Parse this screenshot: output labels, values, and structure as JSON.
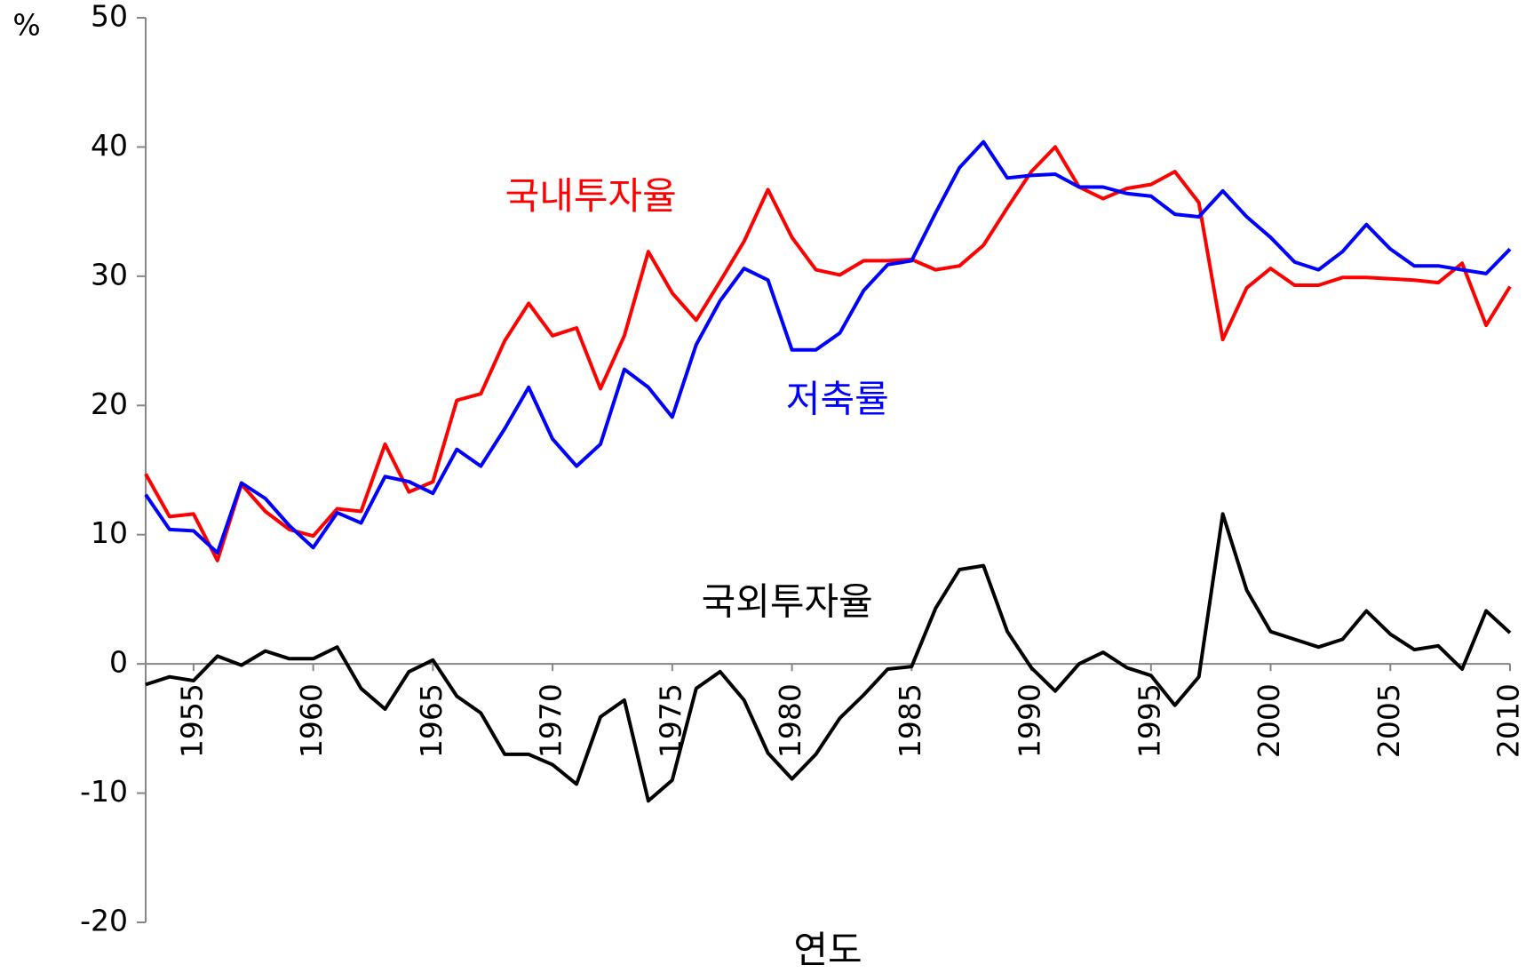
{
  "chart_data": {
    "type": "line",
    "y_unit": "%",
    "x_label": "연도",
    "x": [
      1953,
      1954,
      1955,
      1956,
      1957,
      1958,
      1959,
      1960,
      1961,
      1962,
      1963,
      1964,
      1965,
      1966,
      1967,
      1968,
      1969,
      1970,
      1971,
      1972,
      1973,
      1974,
      1975,
      1976,
      1977,
      1978,
      1979,
      1980,
      1981,
      1982,
      1983,
      1984,
      1985,
      1986,
      1987,
      1988,
      1989,
      1990,
      1991,
      1992,
      1993,
      1994,
      1995,
      1996,
      1997,
      1998,
      1999,
      2000,
      2001,
      2002,
      2003,
      2004,
      2005,
      2006,
      2007,
      2008,
      2009,
      2010
    ],
    "series": [
      {
        "name": "국내투자율",
        "color": "#ff0000",
        "values": [
          14.7,
          11.4,
          11.6,
          8.0,
          13.9,
          11.8,
          10.4,
          9.9,
          12.0,
          11.8,
          17.0,
          13.3,
          14.1,
          20.4,
          20.9,
          25.0,
          27.9,
          25.4,
          26.0,
          21.3,
          25.4,
          31.9,
          28.7,
          26.6,
          29.6,
          32.7,
          36.7,
          33.0,
          30.5,
          30.1,
          31.2,
          31.2,
          31.3,
          30.5,
          30.8,
          32.4,
          35.3,
          38.1,
          40.0,
          36.9,
          36.0,
          36.8,
          37.1,
          38.1,
          35.7,
          25.1,
          29.1,
          30.6,
          29.3,
          29.3,
          29.9,
          29.9,
          29.8,
          29.7,
          29.5,
          31.0,
          26.2,
          29.2
        ]
      },
      {
        "name": "저축률",
        "color": "#0000ff",
        "values": [
          13.1,
          10.4,
          10.3,
          8.6,
          14.0,
          12.8,
          10.7,
          9.0,
          11.7,
          10.9,
          14.5,
          14.1,
          13.2,
          16.6,
          15.3,
          18.2,
          21.4,
          17.4,
          15.3,
          17.0,
          22.8,
          21.4,
          19.1,
          24.7,
          28.1,
          30.6,
          29.7,
          24.3,
          24.3,
          25.6,
          28.9,
          30.9,
          31.2,
          34.9,
          38.4,
          40.4,
          37.6,
          37.8,
          37.9,
          36.9,
          36.9,
          36.4,
          36.2,
          34.8,
          34.6,
          36.6,
          34.6,
          33.0,
          31.1,
          30.5,
          31.9,
          34.0,
          32.1,
          30.8,
          30.8,
          30.5,
          30.2,
          32.1
        ]
      },
      {
        "name": "국외투자율",
        "color": "#000000",
        "values": [
          -1.6,
          -1.0,
          -1.3,
          0.6,
          -0.1,
          1.0,
          0.4,
          0.4,
          1.3,
          -1.9,
          -3.5,
          -0.6,
          0.3,
          -2.5,
          -3.8,
          -7.0,
          -7.0,
          -7.8,
          -9.3,
          -4.1,
          -2.8,
          -10.6,
          -9.0,
          -1.9,
          -0.6,
          -2.8,
          -6.9,
          -8.9,
          -7.0,
          -4.2,
          -2.4,
          -0.4,
          -0.2,
          4.3,
          7.3,
          7.6,
          2.5,
          -0.3,
          -2.1,
          0.0,
          0.9,
          -0.3,
          -0.9,
          -3.2,
          -1.0,
          11.6,
          5.7,
          2.5,
          1.9,
          1.3,
          1.9,
          4.1,
          2.3,
          1.1,
          1.4,
          -0.4,
          4.1,
          2.4
        ]
      }
    ],
    "xlim": [
      1953,
      2010
    ],
    "xticks": [
      1955,
      1960,
      1965,
      1970,
      1975,
      1980,
      1985,
      1990,
      1995,
      2000,
      2005,
      2010
    ],
    "ylim": [
      -20,
      50
    ],
    "yticks": [
      -20,
      -10,
      0,
      10,
      20,
      30,
      40,
      50
    ]
  }
}
